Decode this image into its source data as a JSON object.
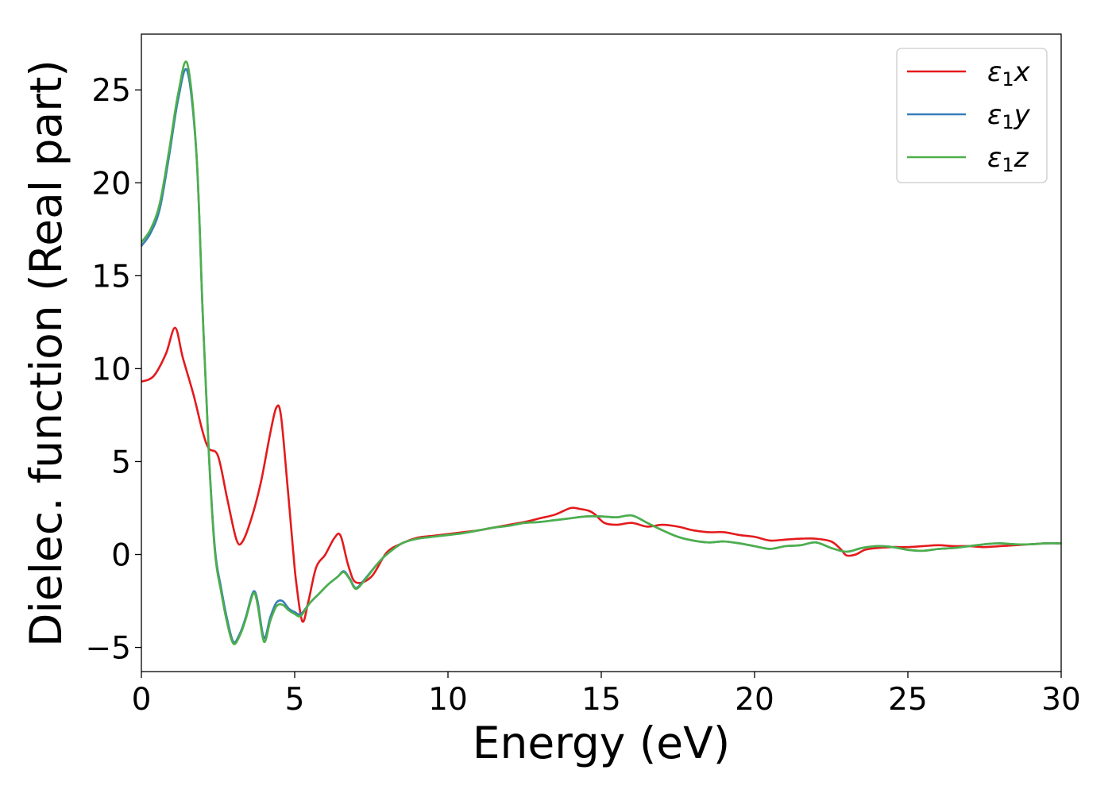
{
  "chart_data": {
    "type": "line",
    "title": "",
    "xlabel": "Energy (eV)",
    "ylabel": "Dielec. function (Real part)",
    "xlim": [
      0,
      30
    ],
    "ylim": [
      -6.3,
      28
    ],
    "xticks": [
      0,
      5,
      10,
      15,
      20,
      25,
      30
    ],
    "yticks": [
      -5,
      0,
      5,
      10,
      15,
      20,
      25
    ],
    "xtick_labels": [
      "0",
      "5",
      "10",
      "15",
      "20",
      "25",
      "30"
    ],
    "ytick_labels": [
      "−5",
      "0",
      "5",
      "10",
      "15",
      "20",
      "25"
    ],
    "grid": false,
    "legend_position": "top-right",
    "series": [
      {
        "name": "ε₁x",
        "label_base": "ε",
        "label_sub": "1",
        "label_tail": "x",
        "color": "#e41a1c",
        "x": [
          0,
          0.4,
          0.8,
          1.1,
          1.35,
          1.7,
          2.0,
          2.2,
          2.5,
          2.8,
          3.1,
          3.3,
          3.6,
          3.9,
          4.2,
          4.4,
          4.55,
          4.75,
          4.95,
          5.05,
          5.25,
          5.45,
          5.7,
          6.0,
          6.3,
          6.5,
          6.75,
          7.0,
          7.5,
          8.0,
          8.5,
          9.0,
          9.5,
          10,
          10.5,
          11,
          11.5,
          12,
          12.5,
          13,
          13.5,
          14,
          14.3,
          14.6,
          14.8,
          15.1,
          15.5,
          16,
          16.5,
          17,
          17.5,
          18,
          18.5,
          19,
          19.5,
          20,
          20.5,
          21,
          21.5,
          22,
          22.5,
          22.8,
          23,
          23.3,
          23.6,
          24,
          24.5,
          25,
          25.5,
          26,
          26.5,
          27,
          27.5,
          28,
          28.5,
          29,
          29.5,
          30
        ],
        "y": [
          9.3,
          9.6,
          10.8,
          12.2,
          10.6,
          8.6,
          6.6,
          5.7,
          5.3,
          3.0,
          0.8,
          0.7,
          2.0,
          3.9,
          6.5,
          7.9,
          7.5,
          4.0,
          0.2,
          -1.5,
          -3.6,
          -2.5,
          -0.7,
          0.0,
          0.9,
          1.0,
          -0.6,
          -1.5,
          -1.2,
          0.1,
          0.6,
          0.9,
          1.0,
          1.1,
          1.2,
          1.3,
          1.45,
          1.6,
          1.75,
          1.95,
          2.15,
          2.5,
          2.45,
          2.35,
          2.15,
          1.7,
          1.6,
          1.7,
          1.5,
          1.6,
          1.5,
          1.3,
          1.2,
          1.2,
          1.05,
          0.95,
          0.75,
          0.8,
          0.85,
          0.85,
          0.7,
          0.3,
          -0.05,
          0.0,
          0.25,
          0.35,
          0.4,
          0.4,
          0.45,
          0.5,
          0.45,
          0.45,
          0.4,
          0.45,
          0.5,
          0.55,
          0.6,
          0.6
        ]
      },
      {
        "name": "ε₁y",
        "label_base": "ε",
        "label_sub": "1",
        "label_tail": "y",
        "color": "#377eb8",
        "x": [
          0,
          0.3,
          0.6,
          0.9,
          1.2,
          1.5,
          1.8,
          2.0,
          2.2,
          2.4,
          2.6,
          2.8,
          3.0,
          3.2,
          3.4,
          3.6,
          3.7,
          3.8,
          4.0,
          4.2,
          4.4,
          4.6,
          4.8,
          5.0,
          5.2,
          5.5,
          5.8,
          6.1,
          6.4,
          6.6,
          6.8,
          7.0,
          7.3,
          7.7,
          8.0,
          8.5,
          9.0,
          9.5,
          10,
          10.5,
          11,
          11.5,
          12,
          12.5,
          13,
          13.5,
          14,
          14.5,
          15,
          15.5,
          16,
          16.5,
          17,
          17.5,
          18,
          18.5,
          19,
          19.5,
          20,
          20.5,
          21,
          21.5,
          22,
          22.5,
          23,
          23.5,
          24,
          24.5,
          25,
          25.5,
          26,
          26.5,
          27,
          27.5,
          28,
          28.5,
          29,
          29.5,
          30
        ],
        "y": [
          16.6,
          17.3,
          18.6,
          21.4,
          24.5,
          26.0,
          21.4,
          13.0,
          5.5,
          0.3,
          -1.8,
          -3.5,
          -4.7,
          -4.3,
          -3.4,
          -2.2,
          -2.0,
          -2.6,
          -4.5,
          -3.4,
          -2.6,
          -2.5,
          -2.9,
          -3.1,
          -3.2,
          -2.6,
          -2.1,
          -1.6,
          -1.2,
          -0.9,
          -1.3,
          -1.8,
          -1.3,
          -0.5,
          0.0,
          0.6,
          0.85,
          0.95,
          1.05,
          1.15,
          1.3,
          1.45,
          1.55,
          1.7,
          1.75,
          1.85,
          1.95,
          2.05,
          2.05,
          2.0,
          2.1,
          1.7,
          1.3,
          0.95,
          0.75,
          0.65,
          0.7,
          0.6,
          0.45,
          0.3,
          0.45,
          0.5,
          0.65,
          0.35,
          0.15,
          0.35,
          0.45,
          0.4,
          0.25,
          0.2,
          0.3,
          0.35,
          0.45,
          0.55,
          0.6,
          0.55,
          0.55,
          0.6,
          0.6
        ]
      },
      {
        "name": "ε₁z",
        "label_base": "ε",
        "label_sub": "1",
        "label_tail": "z",
        "color": "#4daf4a",
        "x": [
          0,
          0.3,
          0.6,
          0.9,
          1.2,
          1.5,
          1.8,
          2.0,
          2.2,
          2.4,
          2.6,
          2.8,
          3.0,
          3.2,
          3.4,
          3.6,
          3.7,
          3.8,
          4.0,
          4.2,
          4.4,
          4.6,
          4.8,
          5.0,
          5.2,
          5.5,
          5.8,
          6.1,
          6.4,
          6.6,
          6.8,
          7.0,
          7.3,
          7.7,
          8.0,
          8.5,
          9.0,
          9.5,
          10,
          10.5,
          11,
          11.5,
          12,
          12.5,
          13,
          13.5,
          14,
          14.5,
          15,
          15.5,
          16,
          16.5,
          17,
          17.5,
          18,
          18.5,
          19,
          19.5,
          20,
          20.5,
          21,
          21.5,
          22,
          22.5,
          23,
          23.5,
          24,
          24.5,
          25,
          25.5,
          26,
          26.5,
          27,
          27.5,
          28,
          28.5,
          29,
          29.5,
          30
        ],
        "y": [
          16.8,
          17.5,
          18.9,
          21.7,
          24.8,
          26.4,
          21.5,
          13.0,
          5.4,
          0.1,
          -2.0,
          -3.7,
          -4.8,
          -4.4,
          -3.5,
          -2.3,
          -2.1,
          -2.8,
          -4.7,
          -3.6,
          -2.8,
          -2.7,
          -3.0,
          -3.2,
          -3.3,
          -2.6,
          -2.1,
          -1.6,
          -1.2,
          -0.95,
          -1.35,
          -1.85,
          -1.35,
          -0.5,
          0.0,
          0.6,
          0.85,
          0.95,
          1.05,
          1.15,
          1.3,
          1.45,
          1.55,
          1.7,
          1.75,
          1.85,
          1.95,
          2.05,
          2.05,
          2.0,
          2.1,
          1.7,
          1.3,
          0.95,
          0.75,
          0.65,
          0.7,
          0.6,
          0.45,
          0.3,
          0.45,
          0.5,
          0.65,
          0.35,
          0.15,
          0.35,
          0.45,
          0.4,
          0.25,
          0.2,
          0.3,
          0.35,
          0.45,
          0.55,
          0.6,
          0.55,
          0.55,
          0.6,
          0.6
        ]
      }
    ]
  }
}
